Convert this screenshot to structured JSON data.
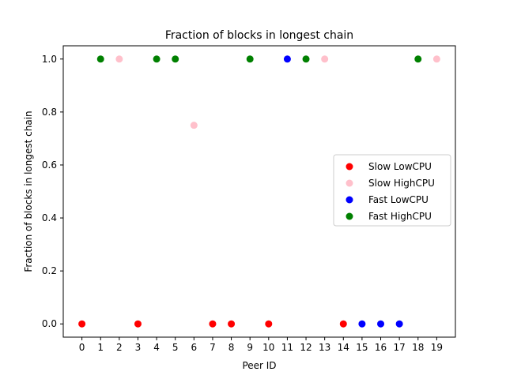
{
  "chart_data": {
    "type": "scatter",
    "title": "Fraction of blocks in longest chain",
    "xlabel": "Peer ID",
    "ylabel": "Fraction of blocks in longest chain",
    "xlim": [
      -1,
      20
    ],
    "ylim": [
      -0.05,
      1.05
    ],
    "x_ticks": [
      0,
      1,
      2,
      3,
      4,
      5,
      6,
      7,
      8,
      9,
      10,
      11,
      12,
      13,
      14,
      15,
      16,
      17,
      18,
      19
    ],
    "y_ticks": [
      0.0,
      0.2,
      0.4,
      0.6,
      0.8,
      1.0
    ],
    "y_tick_labels": [
      "0.0",
      "0.2",
      "0.4",
      "0.6",
      "0.8",
      "1.0"
    ],
    "grid": false,
    "legend_position": "center-right",
    "series": [
      {
        "name": "Slow LowCPU",
        "color": "#ff0000",
        "points": [
          [
            0,
            0.0
          ],
          [
            3,
            0.0
          ],
          [
            7,
            0.0
          ],
          [
            8,
            0.0
          ],
          [
            10,
            0.0
          ],
          [
            14,
            0.0
          ]
        ]
      },
      {
        "name": "Slow HighCPU",
        "color": "#ffc0cb",
        "points": [
          [
            2,
            1.0
          ],
          [
            6,
            0.75
          ],
          [
            13,
            1.0
          ],
          [
            19,
            1.0
          ]
        ]
      },
      {
        "name": "Fast LowCPU",
        "color": "#0000ff",
        "points": [
          [
            11,
            1.0
          ],
          [
            15,
            0.0
          ],
          [
            16,
            0.0
          ],
          [
            17,
            0.0
          ]
        ]
      },
      {
        "name": "Fast HighCPU",
        "color": "#008000",
        "points": [
          [
            1,
            1.0
          ],
          [
            4,
            1.0
          ],
          [
            5,
            1.0
          ],
          [
            9,
            1.0
          ],
          [
            12,
            1.0
          ],
          [
            18,
            1.0
          ]
        ]
      }
    ]
  }
}
